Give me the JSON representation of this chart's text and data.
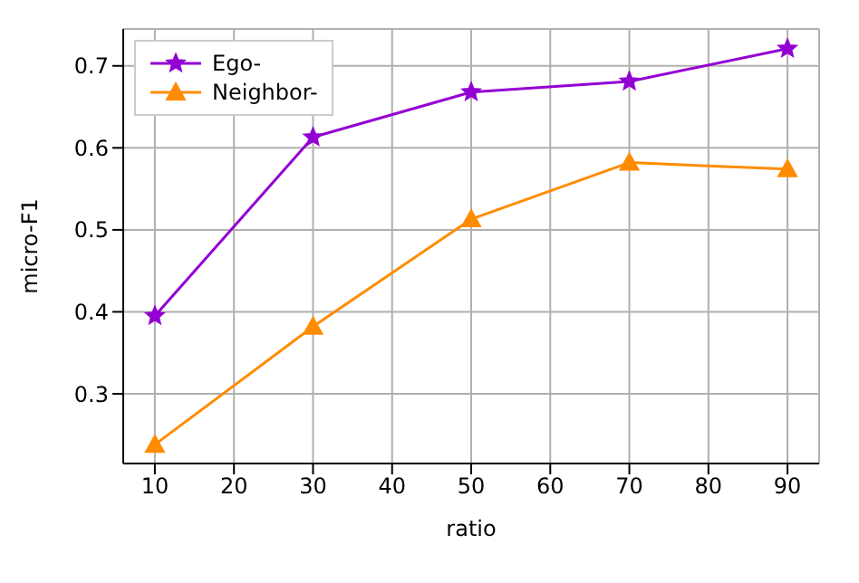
{
  "chart_data": {
    "type": "line",
    "xlabel": "ratio",
    "ylabel": "micro-F1",
    "x": [
      10,
      30,
      50,
      70,
      90
    ],
    "series": [
      {
        "name": "Ego-",
        "color": "#9400d3",
        "marker": "star",
        "values": [
          0.395,
          0.613,
          0.668,
          0.681,
          0.721
        ]
      },
      {
        "name": "Neighbor-",
        "color": "#ff8c00",
        "marker": "triangle",
        "values": [
          0.238,
          0.382,
          0.513,
          0.582,
          0.574
        ]
      }
    ],
    "xlim": [
      6,
      94
    ],
    "xticks": [
      10,
      20,
      30,
      40,
      50,
      60,
      70,
      80,
      90
    ],
    "ylim": [
      0.215,
      0.745
    ],
    "yticks": [
      0.3,
      0.4,
      0.5,
      0.6,
      0.7
    ],
    "grid": true,
    "legend": "top left"
  }
}
